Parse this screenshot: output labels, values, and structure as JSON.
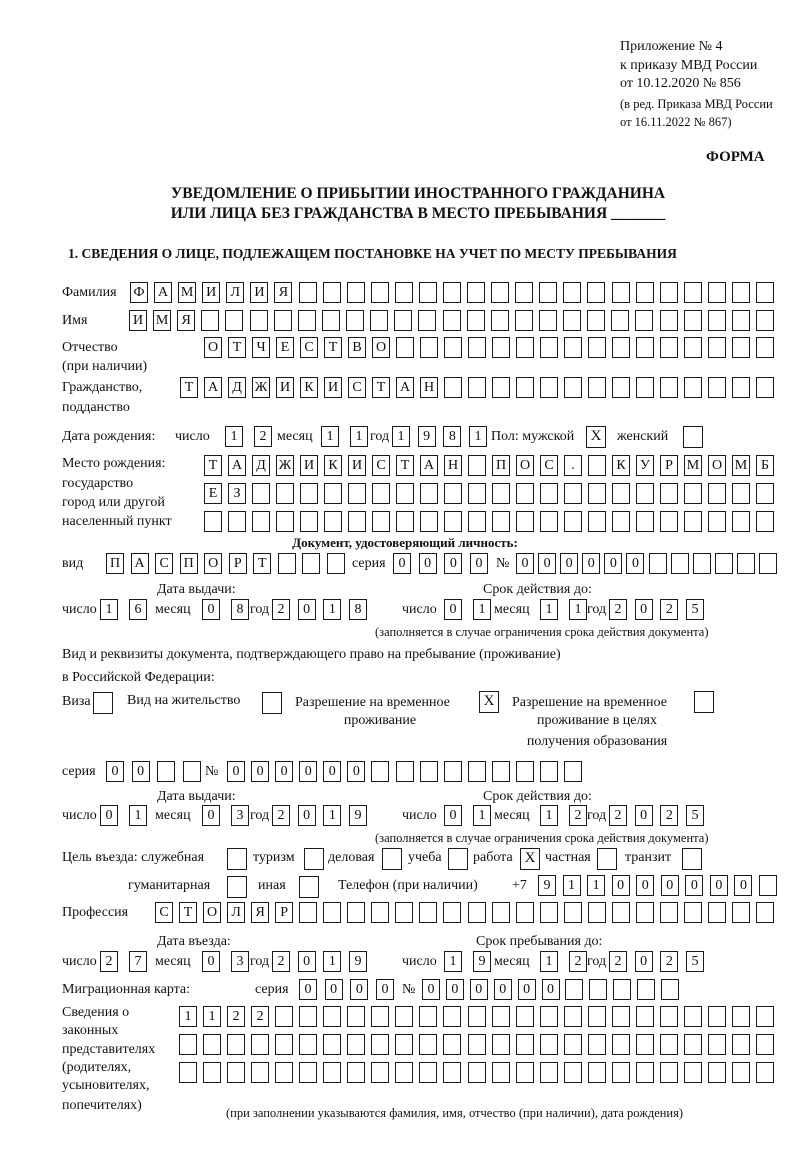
{
  "header": {
    "line1": "Приложение № 4",
    "line2": "к приказу МВД России",
    "line3": "от 10.12.2020 № 856",
    "line4": "(в ред. Приказа МВД России",
    "line5": "от 16.11.2022 № 867)",
    "form_label": "ФОРМА"
  },
  "title": {
    "line1": "УВЕДОМЛЕНИЕ О ПРИБЫТИИ ИНОСТРАННОГО ГРАЖДАНИНА",
    "line2": "ИЛИ ЛИЦА БЕЗ ГРАЖДАНСТВА В МЕСТО ПРЕБЫВАНИЯ _______"
  },
  "section1": {
    "heading": "1. СВЕДЕНИЯ О ЛИЦЕ, ПОДЛЕЖАЩЕМ ПОСТАНОВКЕ НА УЧЕТ ПО МЕСТУ ПРЕБЫВАНИЯ",
    "surname": {
      "label": "Фамилия",
      "value": "ФАМИЛИЯ"
    },
    "name": {
      "label": "Имя",
      "value": "ИМЯ"
    },
    "patronymic": {
      "label": "Отчество",
      "label2": "(при наличии)",
      "value": "ОТЧЕСТВО"
    },
    "citizenship": {
      "label": "Гражданство,",
      "label2": "подданство",
      "value": "ТАДЖИКИСТАН"
    },
    "birth": {
      "label": "Дата рождения:",
      "day_label": "число",
      "day": "12",
      "month_label": "месяц",
      "month": "11",
      "year_label": "год",
      "year": "1981",
      "sex_label": "Пол: мужской",
      "male": "X",
      "female_label": "женский",
      "female": ""
    },
    "birthplace": {
      "label1": "Место рождения:",
      "label2": "государство",
      "label3": "город или другой",
      "label4": "населенный пункт",
      "row1": "ТАДЖИКИСТАН ПОС. КУРМОМБ",
      "row2": "ЕЗ",
      "row3": ""
    },
    "id_doc": {
      "heading": "Документ, удостоверяющий личность:",
      "type_label": "вид",
      "type": "ПАСПОРТ",
      "series_label": "серия",
      "series": "0000",
      "number_label": "№",
      "number": "000000",
      "issue_label": "Дата выдачи:",
      "valid_label": "Срок действия до:",
      "day_label": "число",
      "month_label": "месяц",
      "year_label": "год",
      "issue_day": "16",
      "issue_month": "08",
      "issue_year": "2018",
      "valid_day": "01",
      "valid_month": "11",
      "valid_year": "2025",
      "note": "(заполняется в случае ограничения срока действия документа)"
    },
    "stay_doc": {
      "heading1": "Вид и реквизиты документа, подтверждающего право на пребывание (проживание)",
      "heading2": "в Российской Федерации:",
      "visa_label": "Виза",
      "visa": "",
      "residence_label": "Вид на жительство",
      "residence": "",
      "trp_label1": "Разрешение на временное",
      "trp_label2": "проживание",
      "trp": "X",
      "trp_edu_label1": "Разрешение на временное",
      "trp_edu_label2": "проживание в целях",
      "trp_edu_label3": "получения образования",
      "trp_edu": "",
      "series_label": "серия",
      "series": "00",
      "number_label": "№",
      "number": "000000",
      "issue_label": "Дата выдачи:",
      "valid_label": "Срок действия до:",
      "day_label": "число",
      "month_label": "месяц",
      "year_label": "год",
      "issue_day": "01",
      "issue_month": "03",
      "issue_year": "2019",
      "valid_day": "01",
      "valid_month": "12",
      "valid_year": "2025",
      "note": "(заполняется в случае ограничения срока действия документа)"
    },
    "purpose": {
      "label": "Цель въезда: служебная",
      "service": "",
      "tourism_label": "туризм",
      "tourism": "",
      "business_label": "деловая",
      "business": "",
      "study_label": "учеба",
      "study": "",
      "work_label": "работа",
      "work": "X",
      "private_label": "частная",
      "private": "",
      "transit_label": "транзит",
      "transit": "",
      "humanitarian_label": "гуманитарная",
      "humanitarian": "",
      "other_label": "иная",
      "other": ""
    },
    "phone": {
      "label": "Телефон (при наличии)",
      "prefix": "+7",
      "value": "911000000"
    },
    "profession": {
      "label": "Профессия",
      "value": "СТОЛЯР"
    },
    "entry": {
      "entry_label": "Дата въезда:",
      "stay_label": "Срок пребывания до:",
      "day_label": "число",
      "month_label": "месяц",
      "year_label": "год",
      "entry_day": "27",
      "entry_month": "03",
      "entry_year": "2019",
      "stay_day": "19",
      "stay_month": "12",
      "stay_year": "2025"
    },
    "migration_card": {
      "label": "Миграционная карта:",
      "series_label": "серия",
      "series": "0000",
      "number_label": "№",
      "number": "000000"
    },
    "guardians": {
      "label1": "Сведения о",
      "label2": "законных",
      "label3": "представителях",
      "label4": "(родителях,",
      "label5": "усыновителях,",
      "label6": "попечителях)",
      "row1": "1122",
      "row2": "",
      "row3": "",
      "note": "(при заполнении указываются фамилия, имя, отчество (при наличии), дата рождения)"
    }
  }
}
